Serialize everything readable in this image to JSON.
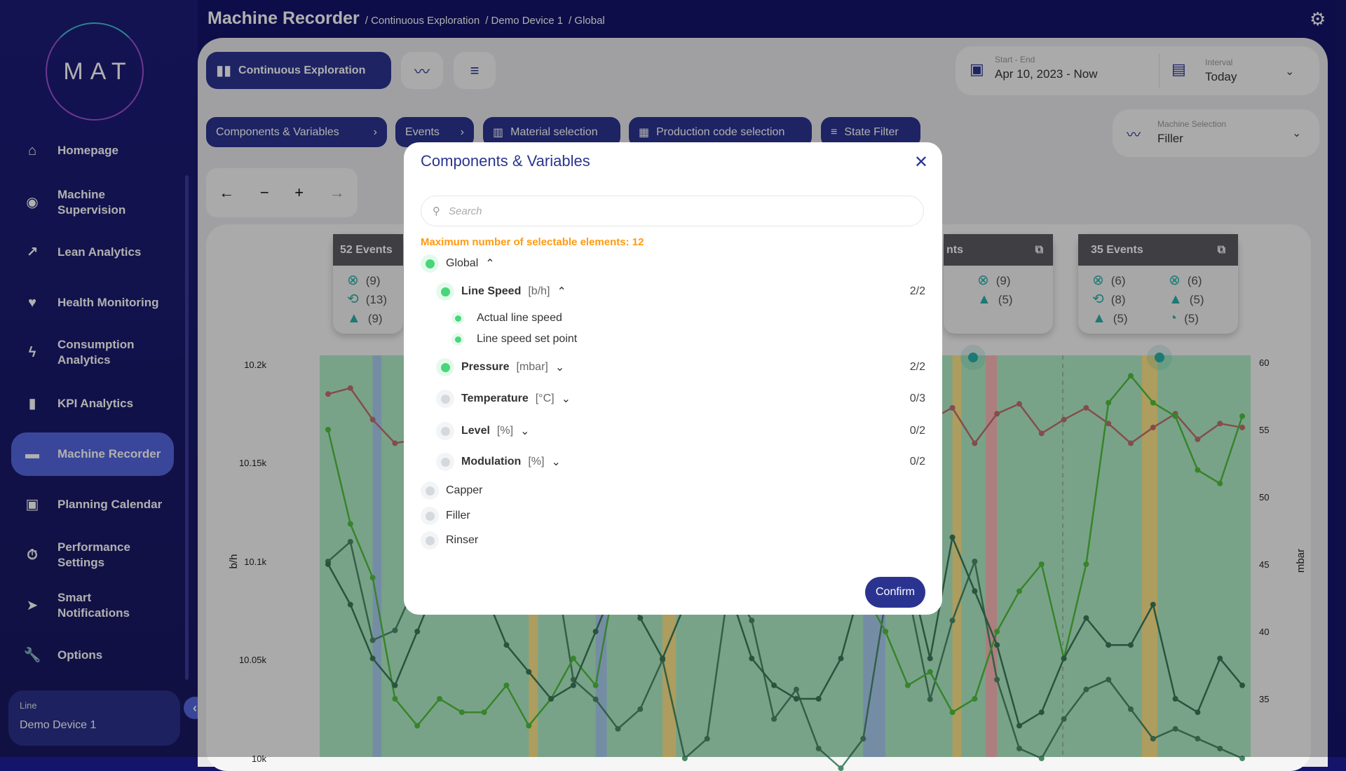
{
  "app": {
    "logo": "MAT",
    "title": "Machine Recorder",
    "breadcrumb": [
      "/ Continuous Exploration",
      "/ Demo Device 1",
      "/ Global"
    ]
  },
  "sidebar": {
    "items": [
      {
        "label": "Homepage",
        "icon": "home-icon",
        "glyph": "⌂"
      },
      {
        "label": "Machine Supervision",
        "icon": "eye-icon",
        "glyph": "◉"
      },
      {
        "label": "Lean Analytics",
        "icon": "trend-icon",
        "glyph": "↗"
      },
      {
        "label": "Health Monitoring",
        "icon": "heart-icon",
        "glyph": "♥"
      },
      {
        "label": "Consumption Analytics",
        "icon": "bolt-icon",
        "glyph": "ϟ"
      },
      {
        "label": "KPI Analytics",
        "icon": "bar-chart-icon",
        "glyph": "▮"
      },
      {
        "label": "Machine Recorder",
        "icon": "recorder-icon",
        "glyph": "▬",
        "active": true
      },
      {
        "label": "Planning Calendar",
        "icon": "calendar-icon",
        "glyph": "▣"
      },
      {
        "label": "Performance Settings",
        "icon": "stopwatch-icon",
        "glyph": "⏱"
      },
      {
        "label": "Smart Notifications",
        "icon": "send-icon",
        "glyph": "➤"
      },
      {
        "label": "Options",
        "icon": "wrench-icon",
        "glyph": "🔧"
      }
    ],
    "line_label": "Line",
    "line_value": "Demo Device 1"
  },
  "toolbar": {
    "view_label": "Continuous Exploration",
    "filters": [
      "Components & Variables",
      "Events",
      "Material selection",
      "Production code selection",
      "State Filter"
    ]
  },
  "date": {
    "label": "Start - End",
    "value": "Apr 10, 2023 - Now",
    "interval_label": "Interval",
    "interval_value": "Today"
  },
  "machine": {
    "label": "Machine Selection",
    "value": "Filler"
  },
  "events": [
    {
      "title": "52 Events",
      "counts": [
        "(9)",
        "(13)",
        "(9)"
      ]
    },
    {
      "title": "35 Events",
      "counts": [
        "(6)",
        "(8)",
        "(5)",
        "(6)",
        "(5)",
        "(5)"
      ]
    }
  ],
  "events_partial": {
    "title": "nts",
    "counts": [
      "(9)",
      "(5)"
    ]
  },
  "dialog": {
    "title": "Components & Variables",
    "search_placeholder": "Search",
    "max_note": "Maximum number of selectable elements: 12",
    "global": "Global",
    "groups": [
      {
        "name": "Line Speed",
        "unit": "[b/h]",
        "count": "2/2",
        "selected": true,
        "children": [
          "Actual line speed",
          "Line speed set point"
        ]
      },
      {
        "name": "Pressure",
        "unit": "[mbar]",
        "count": "2/2",
        "selected": true
      },
      {
        "name": "Temperature",
        "unit": "[°C]",
        "count": "0/3",
        "selected": false
      },
      {
        "name": "Level",
        "unit": "[%]",
        "count": "0/2",
        "selected": false
      },
      {
        "name": "Modulation",
        "unit": "[%]",
        "count": "0/2",
        "selected": false
      }
    ],
    "components": [
      "Capper",
      "Filler",
      "Rinser"
    ],
    "confirm": "Confirm"
  },
  "chart_data": {
    "type": "line",
    "ylabel": "b/h",
    "y2label": "mbar",
    "yticks": [
      "10.2k",
      "10.15k",
      "10.1k",
      "10.05k",
      "10k"
    ],
    "ylim": [
      10000,
      10200
    ],
    "y2ticks": [
      "60",
      "55",
      "50",
      "45",
      "40",
      "35"
    ],
    "y2lim": [
      32.8,
      60.6
    ],
    "series": [
      {
        "axis": "left",
        "color": "#c07070",
        "values": [
          10185,
          10188,
          10172,
          10160,
          10162,
          10168,
          10170,
          10162,
          10170,
          10165,
          10175,
          10168,
          10180,
          10160,
          10172,
          10178,
          10165,
          10160,
          10170,
          10158,
          10182,
          10176,
          10162,
          10165,
          10160,
          10160,
          10158,
          10172,
          10178,
          10160,
          10175,
          10180,
          10165,
          10172,
          10178,
          10170,
          10160,
          10168,
          10175,
          10162,
          10170,
          10168
        ]
      },
      {
        "axis": "left",
        "color": "#4a8a68",
        "values": [
          10100,
          10110,
          10060,
          10065,
          10090,
          10100,
          10105,
          10112,
          10098,
          10080,
          10110,
          10040,
          10030,
          10015,
          10025,
          10050,
          10000,
          10010,
          10090,
          10070,
          10020,
          10035,
          10005,
          9995,
          10010,
          10080,
          10085,
          10030,
          10070,
          10100,
          10040,
          10005,
          10000,
          10020,
          10035,
          10040,
          10025,
          10010,
          10015,
          10010,
          10005,
          10000
        ]
      },
      {
        "axis": "right",
        "color": "#50c040",
        "values": [
          55,
          48,
          44,
          35,
          33,
          35,
          34,
          34,
          36,
          33,
          35,
          38,
          36,
          45,
          52,
          58,
          57,
          56,
          47,
          56,
          58,
          51,
          50,
          50,
          43,
          40,
          36,
          37,
          34,
          35,
          40,
          43,
          45,
          38,
          45,
          57,
          59,
          57,
          56,
          52,
          51,
          56
        ]
      },
      {
        "axis": "right",
        "color": "#3a7a5a",
        "values": [
          45,
          42,
          38,
          36,
          40,
          44,
          46,
          43,
          39,
          37,
          35,
          36,
          40,
          44,
          41,
          38,
          42,
          45,
          43,
          38,
          36,
          35,
          35,
          38,
          44,
          45,
          45,
          38,
          47,
          43,
          39,
          33,
          34,
          38,
          41,
          39,
          39,
          42,
          35,
          34,
          38,
          36
        ]
      }
    ],
    "state_bands": [
      {
        "from": 2,
        "to": 2.4,
        "color": "#a8ccf0"
      },
      {
        "from": 9,
        "to": 9.4,
        "color": "#fbe489"
      },
      {
        "from": 12,
        "to": 12.5,
        "color": "#a8ccf0"
      },
      {
        "from": 15,
        "to": 15.6,
        "color": "#fbe489"
      },
      {
        "from": 24,
        "to": 25,
        "color": "#a8ccf0"
      },
      {
        "from": 28,
        "to": 28.4,
        "color": "#fbe489"
      },
      {
        "from": 29.5,
        "to": 30,
        "color": "#fbb7b7"
      },
      {
        "from": 36.5,
        "to": 37.2,
        "color": "#fbe489"
      }
    ]
  }
}
